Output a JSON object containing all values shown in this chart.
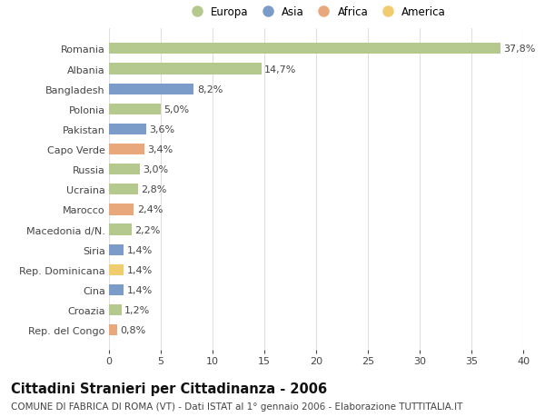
{
  "categories": [
    "Romania",
    "Albania",
    "Bangladesh",
    "Polonia",
    "Pakistan",
    "Capo Verde",
    "Russia",
    "Ucraina",
    "Marocco",
    "Macedonia d/N.",
    "Siria",
    "Rep. Dominicana",
    "Cina",
    "Croazia",
    "Rep. del Congo"
  ],
  "values": [
    37.8,
    14.7,
    8.2,
    5.0,
    3.6,
    3.4,
    3.0,
    2.8,
    2.4,
    2.2,
    1.4,
    1.4,
    1.4,
    1.2,
    0.8
  ],
  "labels": [
    "37,8%",
    "14,7%",
    "8,2%",
    "5,0%",
    "3,6%",
    "3,4%",
    "3,0%",
    "2,8%",
    "2,4%",
    "2,2%",
    "1,4%",
    "1,4%",
    "1,4%",
    "1,2%",
    "0,8%"
  ],
  "continents": [
    "Europa",
    "Europa",
    "Asia",
    "Europa",
    "Asia",
    "Africa",
    "Europa",
    "Europa",
    "Africa",
    "Europa",
    "Asia",
    "America",
    "Asia",
    "Europa",
    "Africa"
  ],
  "continent_colors": {
    "Europa": "#b5c98e",
    "Asia": "#7b9bc8",
    "Africa": "#e8a87c",
    "America": "#f0cc6e"
  },
  "legend_order": [
    "Europa",
    "Asia",
    "Africa",
    "America"
  ],
  "xlim": [
    0,
    40
  ],
  "xticks": [
    0,
    5,
    10,
    15,
    20,
    25,
    30,
    35,
    40
  ],
  "title": "Cittadini Stranieri per Cittadinanza - 2006",
  "subtitle": "COMUNE DI FABRICA DI ROMA (VT) - Dati ISTAT al 1° gennaio 2006 - Elaborazione TUTTITALIA.IT",
  "background_color": "#ffffff",
  "grid_color": "#e0e0e0",
  "bar_height": 0.55,
  "label_fontsize": 8,
  "title_fontsize": 10.5,
  "subtitle_fontsize": 7.5,
  "ytick_fontsize": 8,
  "xtick_fontsize": 8,
  "legend_fontsize": 8.5
}
